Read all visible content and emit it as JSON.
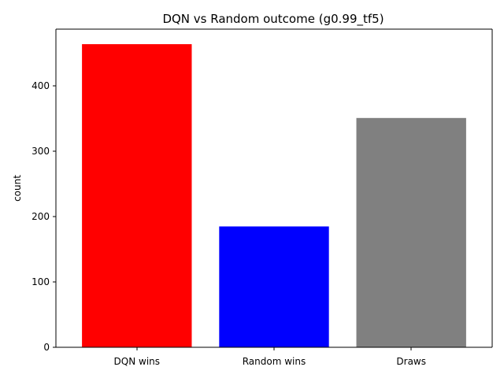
{
  "chart_data": {
    "type": "bar",
    "title": "DQN vs Random outcome (g0.99_tf5)",
    "xlabel": "",
    "ylabel": "count",
    "categories": [
      "DQN wins",
      "Random wins",
      "Draws"
    ],
    "values": [
      464,
      185,
      351
    ],
    "colors": [
      "#ff0000",
      "#0000ff",
      "#808080"
    ],
    "ylim": [
      0,
      487
    ],
    "yticks": [
      0,
      100,
      200,
      300,
      400
    ],
    "grid": false,
    "legend": "none"
  }
}
